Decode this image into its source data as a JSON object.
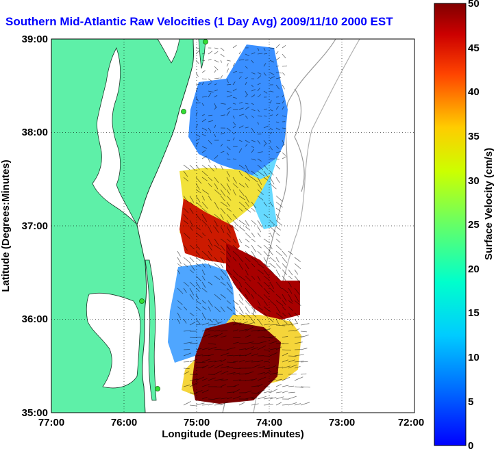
{
  "title": "Southern Mid-Atlantic Raw Velocities (1 Day Avg) 2009/11/10 2000 EST",
  "chart_data": {
    "type": "heatmap",
    "x_axis": {
      "label": "Longitude (Degrees:Minutes)",
      "ticks": [
        "77:00",
        "76:00",
        "75:00",
        "74:00",
        "73:00",
        "72:00"
      ],
      "range": [
        -77,
        -72
      ]
    },
    "y_axis": {
      "label": "Latitude (Degrees:Minutes)",
      "ticks": [
        "35:00",
        "36:00",
        "37:00",
        "38:00",
        "39:00"
      ],
      "range": [
        35,
        39
      ]
    },
    "grid": "dotted",
    "colorbar": {
      "label": "Surface Velocity (cm/s)",
      "ticks": [
        "0",
        "5",
        "10",
        "15",
        "20",
        "25",
        "30",
        "35",
        "40",
        "45",
        "50"
      ],
      "range": [
        0,
        50
      ],
      "colormap": "jet"
    }
  },
  "colors": {
    "title": "#0000ff",
    "land": "#5ef0a8",
    "water": "#ffffff",
    "coast_line": "#1a3a2a",
    "bathymetry": "#9a9a9a",
    "station": "#33dd33"
  }
}
